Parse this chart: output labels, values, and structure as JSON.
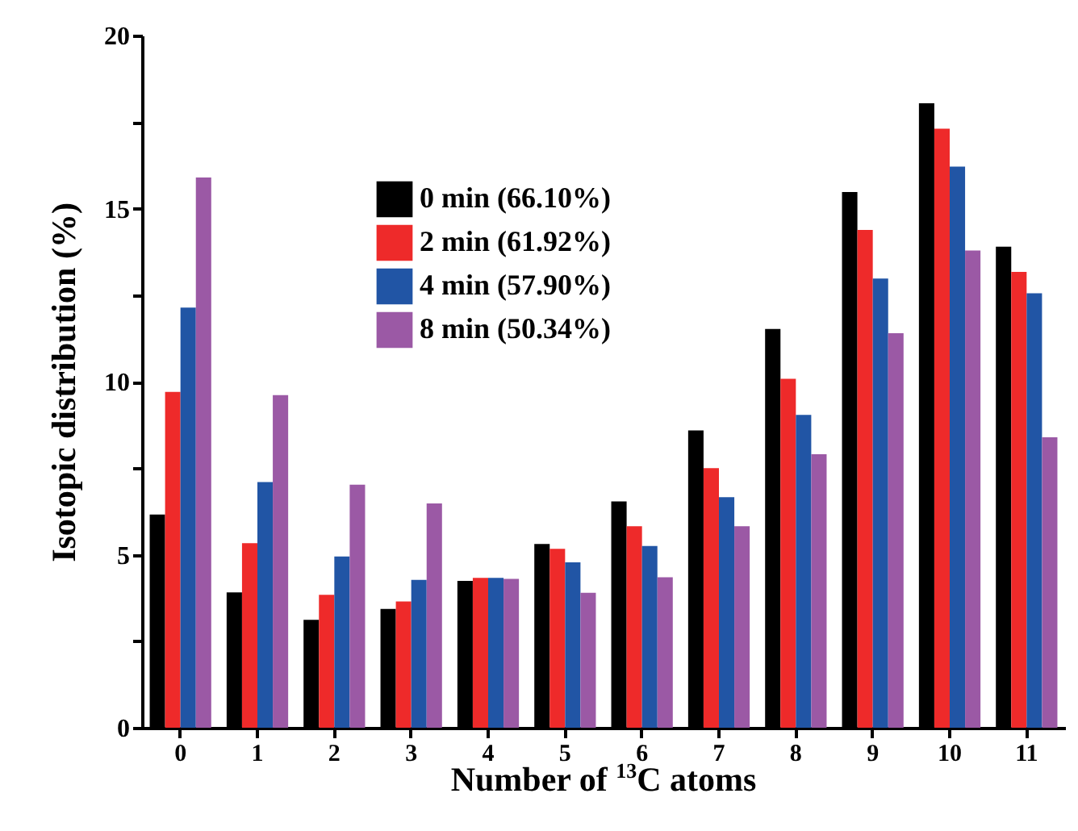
{
  "chart_data": {
    "type": "bar",
    "xlabel": "Number of $^{13}$C atoms",
    "ylabel": "Isotopic distribution (%)",
    "categories": [
      "0",
      "1",
      "2",
      "3",
      "4",
      "5",
      "6",
      "7",
      "8",
      "9",
      "10",
      "11"
    ],
    "series": [
      {
        "name": "0 min (66.10%)",
        "color": "#000000",
        "values": [
          6.16,
          3.91,
          3.12,
          3.43,
          4.24,
          5.31,
          6.54,
          8.59,
          11.52,
          15.48,
          18.04,
          13.9
        ]
      },
      {
        "name": "2 min (61.92%)",
        "color": "#ee2a2a",
        "values": [
          9.7,
          5.33,
          3.84,
          3.65,
          4.33,
          5.17,
          5.82,
          7.5,
          10.08,
          14.38,
          17.31,
          13.17
        ]
      },
      {
        "name": "4 min (57.90%)",
        "color": "#2155a5",
        "values": [
          12.14,
          7.1,
          4.95,
          4.27,
          4.33,
          4.78,
          5.25,
          6.66,
          9.04,
          12.98,
          16.21,
          12.55
        ]
      },
      {
        "name": "8 min (50.34%)",
        "color": "#9b59a5",
        "values": [
          15.9,
          9.61,
          7.02,
          6.48,
          4.3,
          3.9,
          4.35,
          5.82,
          7.9,
          11.4,
          13.79,
          8.39
        ]
      }
    ],
    "ylim": [
      0,
      20
    ],
    "yticks": [
      0,
      {
        "value": 2.5,
        "label": null
      },
      5,
      {
        "value": 7.5,
        "label": null
      },
      10,
      {
        "value": 12.5,
        "label": null
      },
      15,
      {
        "value": 17.5,
        "label": null
      },
      20
    ],
    "grid": false,
    "legend": "top"
  }
}
